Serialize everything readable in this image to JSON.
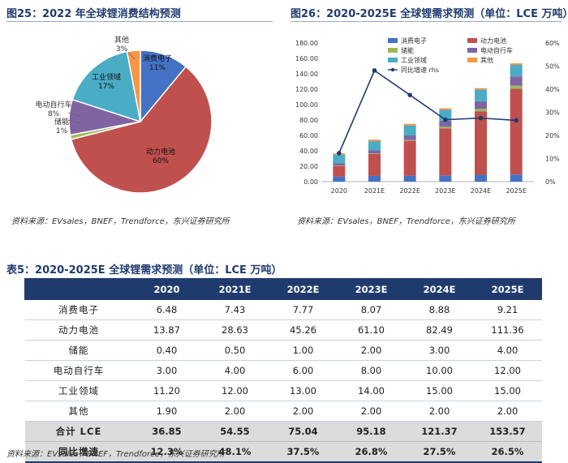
{
  "fig25": {
    "title": "图25：2022 年全球锂消费结构预测",
    "source": "资料来源：EVsales，BNEF，Trendforce，东兴证券研究所"
  },
  "fig26": {
    "title": "图26：2020-2025E 全球锂需求预测（单位：LCE 万吨）",
    "source": "资料来源：EVsales，BNEF，Trendforce，东兴证券研究所"
  },
  "table5": {
    "title": "表5：2020-2025E 全球锂需求预测（单位：LCE 万吨）",
    "source": "资料来源：EVsales，BNEF，Trendforce，东兴证券研究所",
    "headers": [
      "",
      "2020",
      "2021E",
      "2022E",
      "2023E",
      "2024E",
      "2025E"
    ],
    "rows": [
      {
        "label": "消费电子",
        "values": [
          "6.48",
          "7.43",
          "7.77",
          "8.07",
          "8.88",
          "9.21"
        ]
      },
      {
        "label": "动力电池",
        "values": [
          "13.87",
          "28.63",
          "45.26",
          "61.10",
          "82.49",
          "111.36"
        ]
      },
      {
        "label": "储能",
        "values": [
          "0.40",
          "0.50",
          "1.00",
          "2.00",
          "3.00",
          "4.00"
        ]
      },
      {
        "label": "电动自行车",
        "values": [
          "3.00",
          "4.00",
          "6.00",
          "8.00",
          "10.00",
          "12.00"
        ]
      },
      {
        "label": "工业领域",
        "values": [
          "11.20",
          "12.00",
          "13.00",
          "14.00",
          "15.00",
          "15.00"
        ]
      },
      {
        "label": "其他",
        "values": [
          "1.90",
          "2.00",
          "2.00",
          "2.00",
          "2.00",
          "2.00"
        ]
      },
      {
        "label": "合计 LCE",
        "values": [
          "36.85",
          "54.55",
          "75.04",
          "95.18",
          "121.37",
          "153.57"
        ],
        "kind": "total"
      },
      {
        "label": "同比增速",
        "values": [
          "12.3%",
          "48.1%",
          "37.5%",
          "26.8%",
          "27.5%",
          "26.5%"
        ],
        "kind": "growth"
      }
    ]
  },
  "chart_data": [
    {
      "type": "pie",
      "title": "2022 年全球锂消费结构预测",
      "slices": [
        {
          "name": "消费电子",
          "value": 11,
          "label": "11%",
          "color": "#4472c4"
        },
        {
          "name": "动力电池",
          "value": 60,
          "label": "60%",
          "color": "#c0504d"
        },
        {
          "name": "储能",
          "value": 1,
          "label": "1%",
          "color": "#9bbb59"
        },
        {
          "name": "电动自行车",
          "value": 8,
          "label": "8%",
          "color": "#8064a2"
        },
        {
          "name": "工业领域",
          "value": 17,
          "label": "17%",
          "color": "#4bacc6"
        },
        {
          "name": "其他",
          "value": 3,
          "label": "3%",
          "color": "#f79646"
        }
      ]
    },
    {
      "type": "bar",
      "stacked": true,
      "title": "2020-2025E 全球锂需求预测（单位：LCE 万吨）",
      "categories": [
        "2020",
        "2021E",
        "2022E",
        "2023E",
        "2024E",
        "2025E"
      ],
      "series": [
        {
          "name": "消费电子",
          "values": [
            6.48,
            7.43,
            7.77,
            8.07,
            8.88,
            9.21
          ],
          "color": "#4472c4"
        },
        {
          "name": "动力电池",
          "values": [
            13.87,
            28.63,
            45.26,
            61.1,
            82.49,
            111.36
          ],
          "color": "#c0504d"
        },
        {
          "name": "储能",
          "values": [
            0.4,
            0.5,
            1.0,
            2.0,
            3.0,
            4.0
          ],
          "color": "#9bbb59"
        },
        {
          "name": "电动自行车",
          "values": [
            3.0,
            4.0,
            6.0,
            8.0,
            10.0,
            12.0
          ],
          "color": "#8064a2"
        },
        {
          "name": "工业领域",
          "values": [
            11.2,
            12.0,
            13.0,
            14.0,
            15.0,
            15.0
          ],
          "color": "#4bacc6"
        },
        {
          "name": "其他",
          "values": [
            1.9,
            2.0,
            2.0,
            2.0,
            2.0,
            2.0
          ],
          "color": "#f79646"
        }
      ],
      "line": {
        "name": "同比增速 rhs",
        "values": [
          12.3,
          48.1,
          37.5,
          26.8,
          27.5,
          26.5
        ],
        "color": "#1f3b6e"
      },
      "ylim": [
        0,
        180
      ],
      "yticks": [
        "0.00",
        "20.00",
        "40.00",
        "60.00",
        "80.00",
        "100.00",
        "120.00",
        "140.00",
        "160.00",
        "180.00"
      ],
      "y2lim": [
        0,
        60
      ],
      "y2ticks": [
        "0%",
        "10%",
        "20%",
        "30%",
        "40%",
        "50%",
        "60%"
      ],
      "legend": "top-left"
    }
  ]
}
